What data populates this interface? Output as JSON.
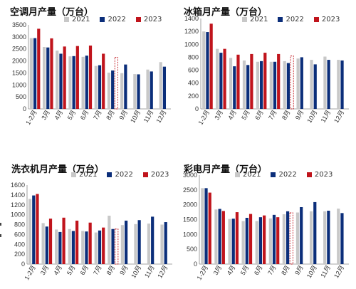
{
  "colors": {
    "s2021": "#c8c8c8",
    "s2022": "#0b2e7a",
    "s2023": "#c0141c"
  },
  "chart_data": [
    {
      "type": "bar",
      "title": "空调月产量（万台）",
      "categories": [
        "1-2月",
        "3月",
        "4月",
        "5月",
        "6月",
        "7月",
        "8月",
        "9月",
        "10月",
        "11月",
        "12月"
      ],
      "ylim": [
        0,
        3500
      ],
      "yticks": [
        "0",
        "500",
        "1000",
        "1500",
        "2000",
        "2500",
        "3000",
        "3500"
      ],
      "series": [
        {
          "name": "2021",
          "values": [
            2950,
            2580,
            2430,
            2190,
            2170,
            1790,
            1510,
            1490,
            1450,
            1640,
            1950
          ]
        },
        {
          "name": "2022",
          "values": [
            2950,
            2560,
            2300,
            2200,
            2220,
            1820,
            1600,
            1850,
            1440,
            1560,
            1760
          ]
        },
        {
          "name": "2023",
          "values": [
            3340,
            2940,
            2600,
            2620,
            2640,
            2300,
            2150,
            null,
            null,
            null,
            null
          ]
        }
      ],
      "dashed_last_2023": true
    },
    {
      "type": "bar",
      "title": "冰箱月产量（万台）",
      "categories": [
        "1-2月",
        "3月",
        "4月",
        "5月",
        "6月",
        "7月",
        "8月",
        "9月",
        "10月",
        "11月",
        "12月"
      ],
      "ylim": [
        0,
        1400
      ],
      "yticks": [
        "0",
        "200",
        "400",
        "600",
        "800",
        "1000",
        "1200",
        "1400"
      ],
      "series": [
        {
          "name": "2021",
          "values": [
            1200,
            930,
            790,
            750,
            730,
            730,
            740,
            780,
            760,
            810,
            760
          ]
        },
        {
          "name": "2022",
          "values": [
            1190,
            870,
            660,
            680,
            740,
            730,
            710,
            800,
            690,
            760,
            750
          ]
        },
        {
          "name": "2023",
          "values": [
            1320,
            930,
            840,
            850,
            870,
            850,
            820,
            null,
            null,
            null,
            null
          ]
        }
      ],
      "dashed_last_2023": true
    },
    {
      "type": "bar",
      "title": "洗衣机月产量（万台）",
      "categories": [
        "1-2月",
        "3月",
        "4月",
        "5月",
        "6月",
        "7月",
        "8月",
        "9月",
        "10月",
        "11月",
        "12月"
      ],
      "ylim": [
        0,
        1600
      ],
      "yticks": [
        "0",
        "200",
        "400",
        "600",
        "800",
        "1000",
        "1200",
        "1400",
        "1600"
      ],
      "series": [
        {
          "name": "2021",
          "values": [
            1320,
            830,
            700,
            710,
            670,
            640,
            980,
            790,
            810,
            820,
            800
          ]
        },
        {
          "name": "2022",
          "values": [
            1390,
            760,
            650,
            670,
            660,
            680,
            710,
            880,
            890,
            960,
            850
          ]
        },
        {
          "name": "2023",
          "values": [
            1420,
            920,
            940,
            880,
            840,
            740,
            710,
            null,
            null,
            null,
            null
          ]
        }
      ],
      "dashed_last_2023": true
    },
    {
      "type": "bar",
      "title": "彩电月产量（万台）",
      "categories": [
        "1-2月",
        "3月",
        "4月",
        "5月",
        "6月",
        "7月",
        "8月",
        "9月",
        "10月",
        "11月",
        "12月"
      ],
      "ylim": [
        0,
        3000
      ],
      "yticks": [
        "0",
        "500",
        "1000",
        "1500",
        "2000",
        "2500",
        "3000"
      ],
      "series": [
        {
          "name": "2021",
          "values": [
            2560,
            1840,
            1520,
            1450,
            1450,
            1540,
            1680,
            1740,
            1780,
            1780,
            1870
          ]
        },
        {
          "name": "2022",
          "values": [
            2560,
            1860,
            1530,
            1560,
            1580,
            1660,
            1780,
            1920,
            2090,
            1800,
            1720
          ]
        },
        {
          "name": "2023",
          "values": [
            2410,
            1790,
            1750,
            1690,
            1640,
            1580,
            1730,
            null,
            null,
            null,
            null
          ]
        }
      ],
      "dashed_last_2023": true
    }
  ]
}
